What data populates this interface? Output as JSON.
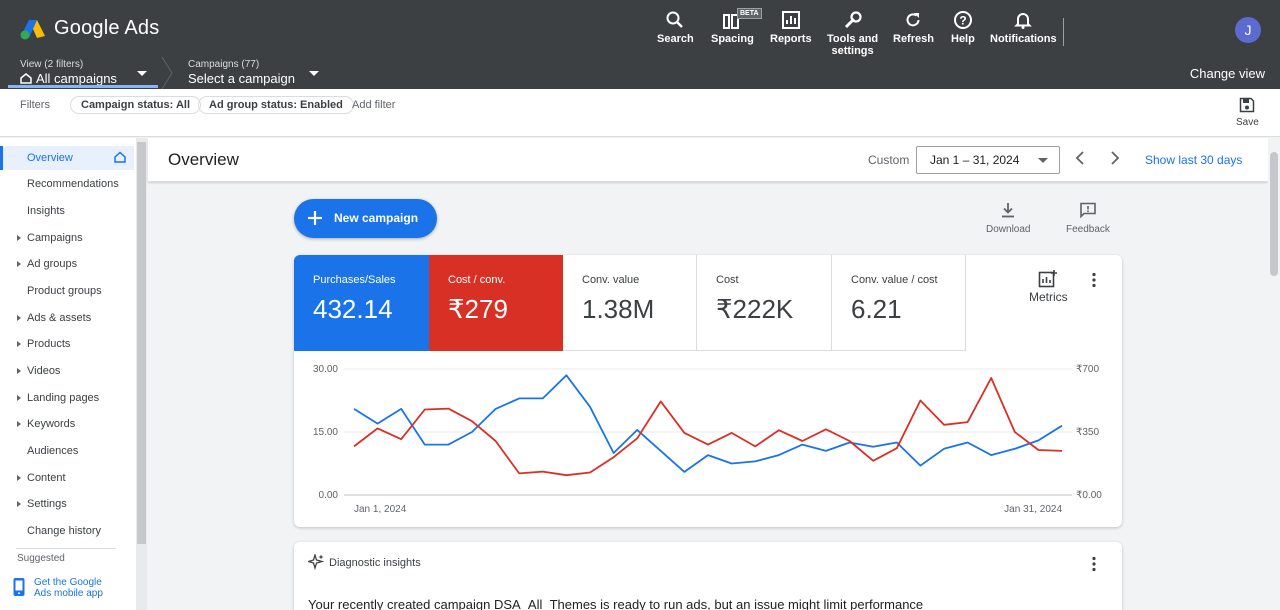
{
  "app": {
    "title": "Google Ads"
  },
  "toolbar": {
    "search": "Search",
    "spacing": "Spacing",
    "spacing_badge": "BETA",
    "reports": "Reports",
    "tools_line1": "Tools and",
    "tools_line2": "settings",
    "refresh": "Refresh",
    "help": "Help",
    "notifications": "Notifications",
    "avatar_initial": "J"
  },
  "subbar": {
    "view_label": "View (2 filters)",
    "view_value": "All campaigns",
    "campaigns_label": "Campaigns (77)",
    "campaigns_value": "Select a campaign",
    "change_view": "Change view"
  },
  "filters": {
    "label": "Filters",
    "chips": [
      "Campaign status: All",
      "Ad group status: Enabled"
    ],
    "add_filter": "Add filter",
    "save": "Save"
  },
  "sidebar": {
    "items": [
      {
        "label": "Overview",
        "active": true,
        "arrow": false
      },
      {
        "label": "Recommendations",
        "arrow": false
      },
      {
        "label": "Insights",
        "arrow": false
      },
      {
        "label": "Campaigns",
        "arrow": true
      },
      {
        "label": "Ad groups",
        "arrow": true
      },
      {
        "label": "Product groups",
        "arrow": false
      },
      {
        "label": "Ads & assets",
        "arrow": true
      },
      {
        "label": "Products",
        "arrow": true
      },
      {
        "label": "Videos",
        "arrow": true
      },
      {
        "label": "Landing pages",
        "arrow": true
      },
      {
        "label": "Keywords",
        "arrow": true
      },
      {
        "label": "Audiences",
        "arrow": false
      },
      {
        "label": "Content",
        "arrow": true
      },
      {
        "label": "Settings",
        "arrow": true
      },
      {
        "label": "Change history",
        "arrow": false
      }
    ],
    "suggested": "Suggested",
    "mobile_line1": "Get the Google",
    "mobile_line2": "Ads mobile app"
  },
  "header": {
    "title": "Overview",
    "custom_label": "Custom",
    "date_range": "Jan 1 – 31, 2024",
    "show_last": "Show last 30 days"
  },
  "actions": {
    "new_campaign": "New campaign",
    "download": "Download",
    "feedback": "Feedback",
    "metrics": "Metrics"
  },
  "metrics": [
    {
      "label": "Purchases/Sales",
      "value": "432.14"
    },
    {
      "label": "Cost / conv.",
      "value": "₹279"
    },
    {
      "label": "Conv. value",
      "value": "1.38M"
    },
    {
      "label": "Cost",
      "value": "₹222K"
    },
    {
      "label": "Conv. value / cost",
      "value": "6.21"
    }
  ],
  "colors": {
    "blue": "#1a73e8",
    "red": "#d93025"
  },
  "chart_data": {
    "type": "line",
    "x_start_label": "Jan 1, 2024",
    "x_end_label": "Jan 31, 2024",
    "left_ticks": [
      "30.00",
      "15.00",
      "0.00"
    ],
    "right_ticks": [
      "₹700",
      "₹350",
      "₹0.00"
    ],
    "ylim_left": [
      0,
      30
    ],
    "ylim_right": [
      0,
      700
    ],
    "series": [
      {
        "axis": "left",
        "color": "#1a73e8",
        "values": [
          20.5,
          17.0,
          20.5,
          12.0,
          12.0,
          15.0,
          20.5,
          23.0,
          23.0,
          28.5,
          21.0,
          10.0,
          15.5,
          10.5,
          5.5,
          9.5,
          7.5,
          8.0,
          9.5,
          12.0,
          10.5,
          12.5,
          11.5,
          12.5,
          7.0,
          11.0,
          12.5,
          9.5,
          11.0,
          13.0,
          16.5
        ]
      },
      {
        "axis": "right",
        "color": "#d93025",
        "values": [
          270,
          370,
          310,
          475,
          480,
          410,
          300,
          120,
          130,
          110,
          125,
          210,
          315,
          520,
          345,
          280,
          345,
          270,
          360,
          300,
          365,
          300,
          190,
          260,
          525,
          390,
          405,
          650,
          350,
          250,
          245
        ]
      }
    ]
  },
  "diagnostic": {
    "title": "Diagnostic insights",
    "text": "Your recently created campaign DSA_All_Themes is ready to run ads, but an issue might limit performance"
  }
}
